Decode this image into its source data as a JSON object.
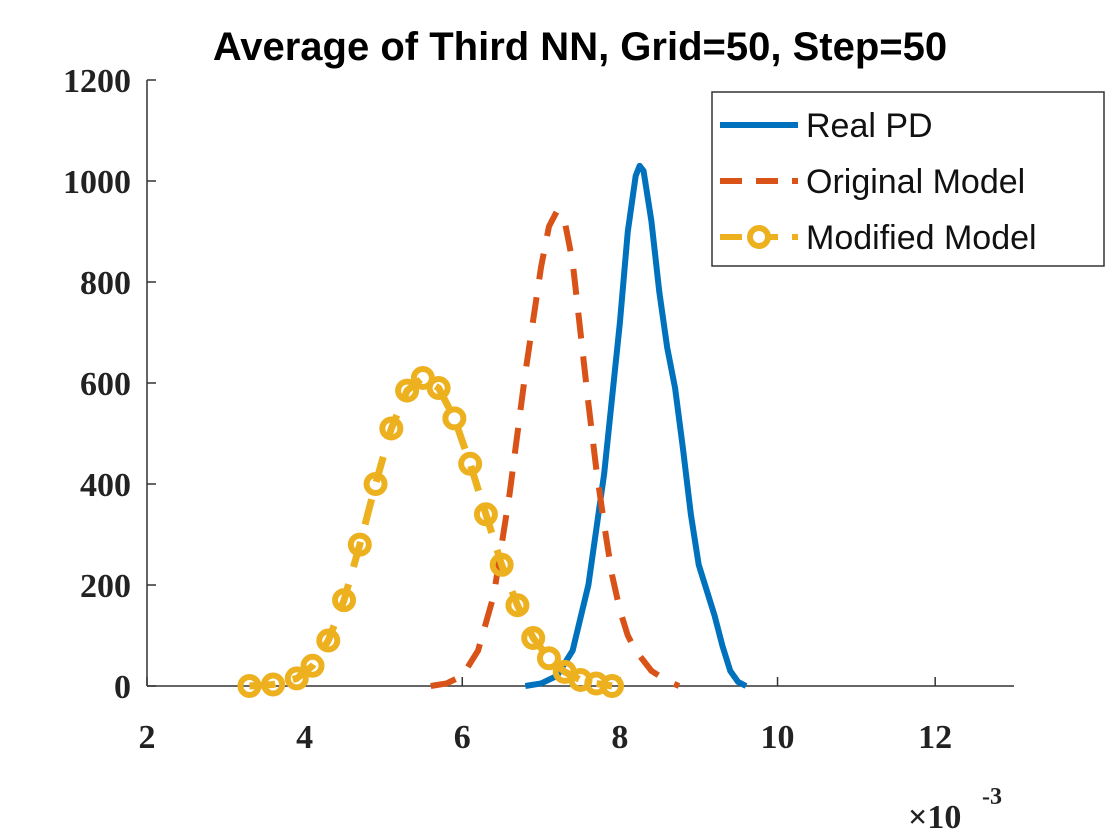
{
  "chart_data": {
    "type": "line",
    "title": "Average of Third NN, Grid=50, Step=50",
    "x_multiplier": "×10",
    "x_exponent": "-3",
    "xlim": [
      2,
      13
    ],
    "xticks": [
      2,
      4,
      6,
      8,
      10,
      12
    ],
    "ylim": [
      0,
      1200
    ],
    "yticks": [
      0,
      200,
      400,
      600,
      800,
      1000,
      1200
    ],
    "grid": false,
    "legend": "northeast",
    "series": [
      {
        "name": "Real PD",
        "color": "#0072bd",
        "style": "solid",
        "marker": "none",
        "x": [
          6.8,
          7.0,
          7.2,
          7.4,
          7.6,
          7.8,
          8.0,
          8.1,
          8.2,
          8.25,
          8.3,
          8.4,
          8.5,
          8.6,
          8.7,
          8.8,
          8.9,
          9.0,
          9.1,
          9.2,
          9.3,
          9.4,
          9.5,
          9.6
        ],
        "values": [
          0,
          5,
          20,
          70,
          200,
          420,
          720,
          900,
          1010,
          1030,
          1020,
          920,
          780,
          670,
          590,
          470,
          340,
          240,
          190,
          140,
          80,
          30,
          8,
          0
        ]
      },
      {
        "name": "Original Model",
        "color": "#d95319",
        "style": "dashed",
        "marker": "none",
        "x": [
          5.6,
          5.8,
          6.0,
          6.2,
          6.4,
          6.6,
          6.8,
          7.0,
          7.1,
          7.2,
          7.3,
          7.4,
          7.5,
          7.6,
          7.7,
          7.8,
          7.9,
          8.0,
          8.1,
          8.2,
          8.3,
          8.4,
          8.6,
          8.75
        ],
        "values": [
          0,
          5,
          20,
          70,
          180,
          380,
          620,
          830,
          910,
          940,
          920,
          840,
          700,
          560,
          430,
          320,
          220,
          150,
          100,
          70,
          50,
          30,
          10,
          0
        ]
      },
      {
        "name": "Modified Model",
        "color": "#edb120",
        "style": "dashed",
        "marker": "circle",
        "x": [
          3.3,
          3.6,
          3.9,
          4.1,
          4.3,
          4.5,
          4.7,
          4.9,
          5.1,
          5.3,
          5.5,
          5.7,
          5.9,
          6.1,
          6.3,
          6.5,
          6.7,
          6.9,
          7.1,
          7.3,
          7.5,
          7.7,
          7.9
        ],
        "values": [
          0,
          3,
          15,
          40,
          90,
          170,
          280,
          400,
          510,
          585,
          610,
          590,
          530,
          440,
          340,
          240,
          160,
          95,
          55,
          28,
          12,
          5,
          0
        ]
      }
    ]
  }
}
